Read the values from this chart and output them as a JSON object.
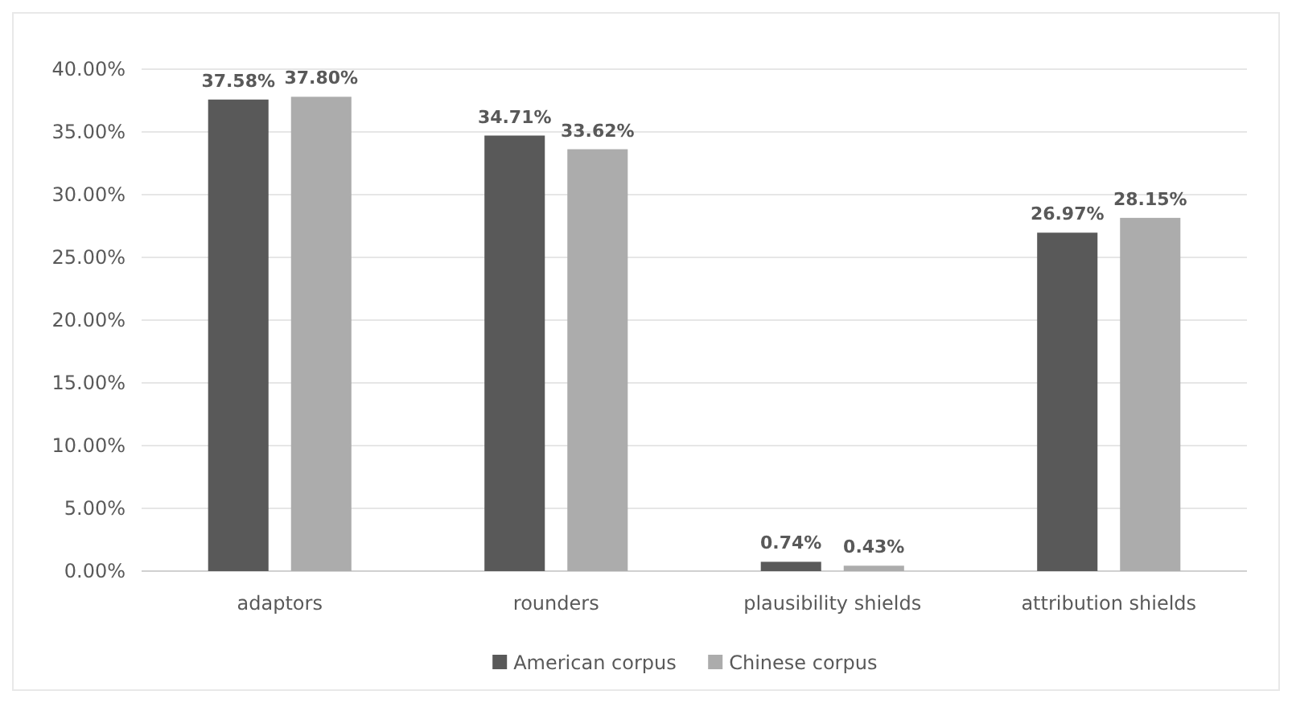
{
  "chart_data": {
    "type": "bar",
    "categories": [
      "adaptors",
      "rounders",
      "plausibility shields",
      "attribution shields"
    ],
    "series": [
      {
        "name": "American corpus",
        "color": "#595959",
        "values": [
          37.58,
          34.71,
          0.74,
          26.97
        ],
        "value_labels": [
          "37.58%",
          "34.71%",
          "0.74%",
          "26.97%"
        ]
      },
      {
        "name": "Chinese corpus",
        "color": "#acacac",
        "values": [
          37.8,
          33.62,
          0.43,
          28.15
        ],
        "value_labels": [
          "37.80%",
          "33.62%",
          "0.43%",
          "28.15%"
        ]
      }
    ],
    "ylim": [
      0,
      40
    ],
    "yticks": [
      {
        "value": 0,
        "label": "0.00%"
      },
      {
        "value": 5,
        "label": "5.00%"
      },
      {
        "value": 10,
        "label": "10.00%"
      },
      {
        "value": 15,
        "label": "15.00%"
      },
      {
        "value": 20,
        "label": "20.00%"
      },
      {
        "value": 25,
        "label": "25.00%"
      },
      {
        "value": 30,
        "label": "30.00%"
      },
      {
        "value": 35,
        "label": "35.00%"
      },
      {
        "value": 40,
        "label": "40.00%"
      }
    ],
    "grid": "y",
    "legend": "bottom"
  }
}
